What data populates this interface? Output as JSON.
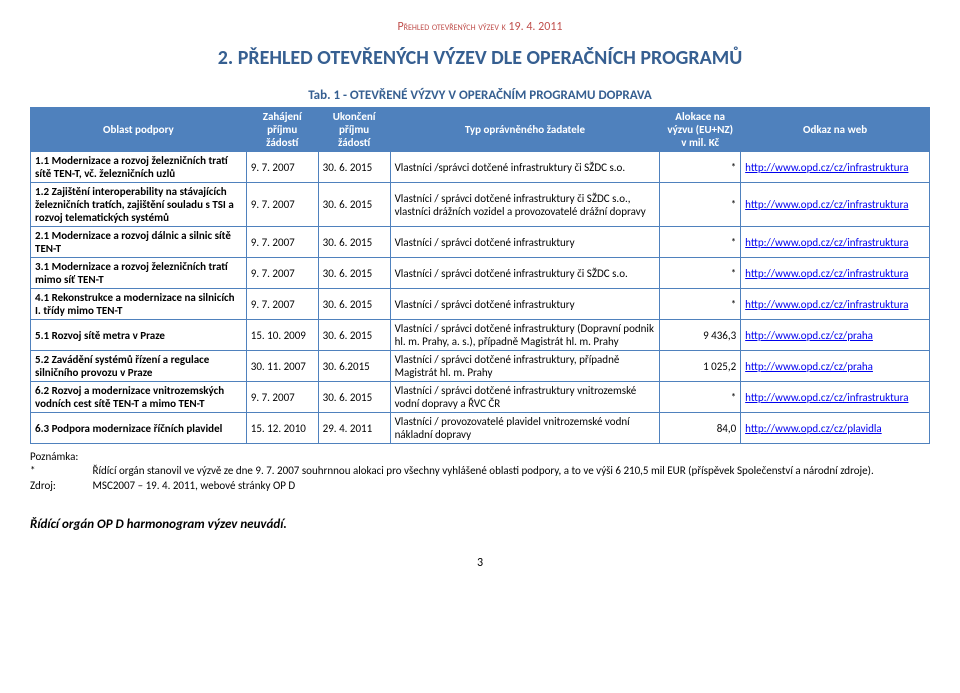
{
  "docHeader": "Přehled otevřených výzev k  19. 4. 2011",
  "sectionTitle": "2. PŘEHLED OTEVŘENÝCH VÝZEV DLE OPERAČNÍCH PROGRAMŮ",
  "tableCaption": "Tab. 1 - OTEVŘENÉ VÝZVY V OPERAČNÍM PROGRAMU DOPRAVA",
  "columns": [
    "Oblast podpory",
    "Zahájení příjmu žádostí",
    "Ukončení příjmu žádostí",
    "Typ oprávněného žadatele",
    "Alokace na výzvu (EU+NZ) v mil. Kč",
    "Odkaz na web"
  ],
  "rows": [
    {
      "oblast": "1.1 Modernizace a rozvoj železničních tratí sítě TEN-T, vč. železničních uzlů",
      "zah": "9. 7. 2007",
      "uk": "30. 6. 2015",
      "typ": "Vlastníci /správci dotčené infrastruktury či SŽDC s.o.",
      "alo": "*",
      "link": "http://www.opd.cz/cz/infrastruktura"
    },
    {
      "oblast": "1.2 Zajištění interoperability na stávajících železničních tratích, zajištění souladu s TSI a rozvoj telematických systémů",
      "zah": "9. 7. 2007",
      "uk": "30. 6. 2015",
      "typ": "Vlastníci / správci dotčené infrastruktury či SŽDC s.o., vlastníci drážních vozidel a provozovatelé drážní dopravy",
      "alo": "*",
      "link": "http://www.opd.cz/cz/infrastruktura"
    },
    {
      "oblast": "2.1 Modernizace a rozvoj dálnic a silnic sítě TEN-T",
      "zah": "9. 7. 2007",
      "uk": "30. 6. 2015",
      "typ": "Vlastníci / správci dotčené infrastruktury",
      "alo": "*",
      "link": "http://www.opd.cz/cz/infrastruktura"
    },
    {
      "oblast": "3.1 Modernizace a rozvoj železničních tratí mimo síť TEN-T",
      "zah": "9. 7. 2007",
      "uk": "30. 6. 2015",
      "typ": "Vlastníci / správci dotčené infrastruktury či SŽDC s.o.",
      "alo": "*",
      "link": "http://www.opd.cz/cz/infrastruktura"
    },
    {
      "oblast": "4.1 Rekonstrukce a modernizace na silnicích I. třídy mimo TEN-T",
      "zah": "9. 7. 2007",
      "uk": "30. 6. 2015",
      "typ": "Vlastníci / správci dotčené infrastruktury",
      "alo": "*",
      "link": "http://www.opd.cz/cz/infrastruktura"
    },
    {
      "oblast": "5.1 Rozvoj sítě metra v Praze",
      "zah": "15. 10. 2009",
      "uk": "30. 6. 2015",
      "typ": "Vlastníci / správci dotčené infrastruktury (Dopravní podnik hl. m. Prahy, a. s.), případně Magistrát hl. m. Prahy",
      "alo": "9 436,3",
      "link": "http://www.opd.cz/cz/praha"
    },
    {
      "oblast": "5.2 Zavádění systémů řízení a regulace silničního provozu v Praze",
      "zah": "30. 11. 2007",
      "uk": "30. 6.2015",
      "typ": "Vlastníci / správci dotčené infrastruktury, případně Magistrát hl. m. Prahy",
      "alo": "1 025,2",
      "link": "http://www.opd.cz/cz/praha"
    },
    {
      "oblast": "6.2 Rozvoj a modernizace vnitrozemských vodních cest sítě TEN-T a mimo TEN-T",
      "zah": "9. 7. 2007",
      "uk": "30. 6. 2015",
      "typ": "Vlastníci / správci dotčené infrastruktury vnitrozemské vodní dopravy a ŘVC ČR",
      "alo": "*",
      "link": "http://www.opd.cz/cz/infrastruktura"
    },
    {
      "oblast": "6.3 Podpora modernizace říčních plavidel",
      "zah": "15. 12. 2010",
      "uk": "29. 4. 2011",
      "typ": "Vlastníci / provozovatelé plavidel vnitrozemské vodní nákladní dopravy",
      "alo": "84,0",
      "link": "http://www.opd.cz/cz/plavidla"
    }
  ],
  "notes": {
    "poznLabel": "Poznámka:",
    "starLabel": "*",
    "starText": "Řídící orgán stanovil ve výzvě ze dne 9. 7. 2007 souhrnnou alokaci pro všechny vyhlášené oblasti podpory, a to ve výši 6 210,5 mil EUR (příspěvek Společenství a národní zdroje).",
    "zdrojLabel": "Zdroj:",
    "zdrojText": "MSC2007 – 19. 4. 2011, webové stránky OP D"
  },
  "harmonogram": "Řídící orgán OP D harmonogram výzev neuvádí.",
  "pageNumber": "3"
}
